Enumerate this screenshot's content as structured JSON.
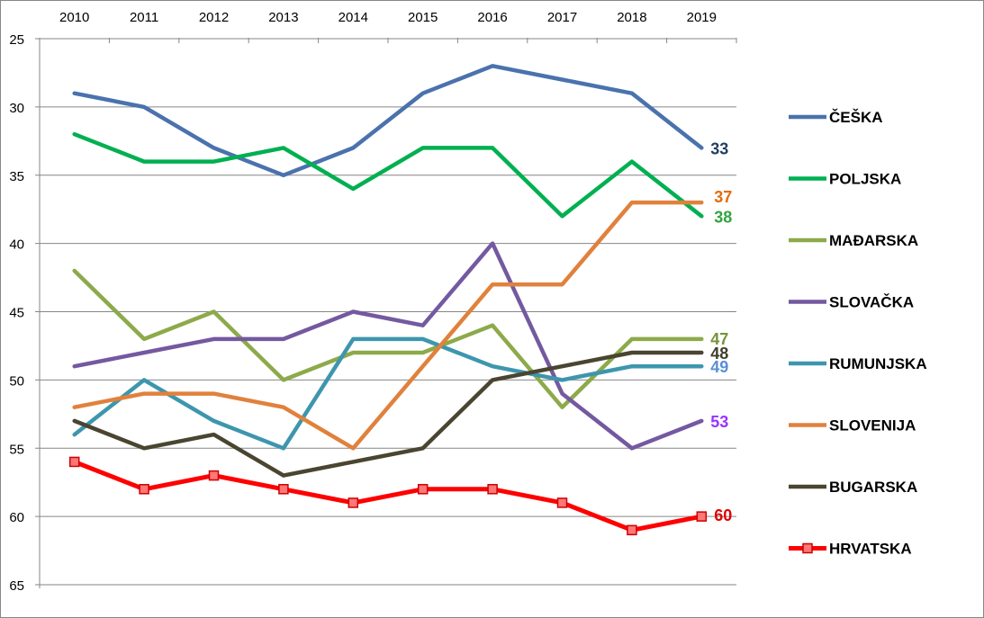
{
  "chart_data": {
    "type": "line",
    "title": "",
    "xlabel": "",
    "ylabel": "",
    "x": [
      "2010",
      "2011",
      "2012",
      "2013",
      "2014",
      "2015",
      "2016",
      "2017",
      "2018",
      "2019"
    ],
    "ylim": [
      25,
      65
    ],
    "y_inverted": true,
    "y_ticks": [
      25,
      30,
      35,
      40,
      45,
      50,
      55,
      60,
      65
    ],
    "x_axis_position": "top",
    "grid": true,
    "legend_placement": "right",
    "series": [
      {
        "name": "ČEŠKA",
        "color": "#4a72ad",
        "values": [
          29,
          30,
          33,
          35,
          33,
          29,
          27,
          28,
          29,
          33
        ],
        "end_label": "33",
        "end_label_color": "#243f60",
        "marker": false
      },
      {
        "name": "POLJSKA",
        "color": "#00b050",
        "values": [
          32,
          34,
          34,
          33,
          36,
          33,
          33,
          38,
          34,
          38
        ],
        "end_label": "38",
        "end_label_color": "#33a340",
        "marker": false
      },
      {
        "name": "MAĐARSKA",
        "color": "#8daa4b",
        "values": [
          42,
          47,
          45,
          50,
          48,
          48,
          46,
          52,
          47,
          47
        ],
        "end_label": "47",
        "end_label_color": "#77933c",
        "marker": false
      },
      {
        "name": "SLOVAČKA",
        "color": "#7459a0",
        "values": [
          49,
          48,
          47,
          47,
          45,
          46,
          40,
          51,
          55,
          53
        ],
        "end_label": "53",
        "end_label_color": "#9933ff",
        "marker": false
      },
      {
        "name": "RUMUNJSKA",
        "color": "#3d96ae",
        "values": [
          54,
          50,
          53,
          55,
          47,
          47,
          49,
          50,
          49,
          49
        ],
        "end_label": "49",
        "end_label_color": "#5b8fd6",
        "marker": false
      },
      {
        "name": "SLOVENIJA",
        "color": "#e0813c",
        "values": [
          52,
          51,
          51,
          52,
          55,
          49,
          43,
          43,
          37,
          37
        ],
        "end_label": "37",
        "end_label_color": "#e36c0a",
        "marker": false
      },
      {
        "name": "BUGARSKA",
        "color": "#4a4530",
        "values": [
          53,
          55,
          54,
          57,
          56,
          55,
          50,
          49,
          48,
          48
        ],
        "end_label": "48",
        "end_label_color": "#3f3f2a",
        "marker": false
      },
      {
        "name": "HRVATSKA",
        "color": "#ff0000",
        "values": [
          56,
          58,
          57,
          58,
          59,
          58,
          58,
          59,
          61,
          60
        ],
        "end_label": "60",
        "end_label_color": "#e00000",
        "marker": true
      }
    ]
  }
}
